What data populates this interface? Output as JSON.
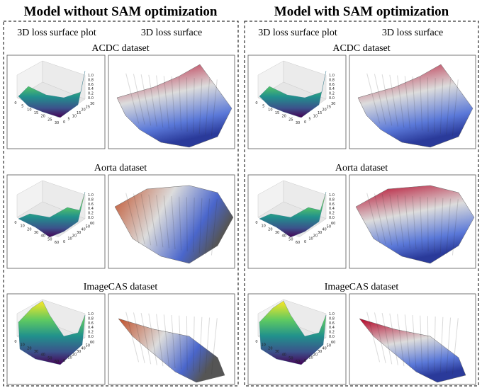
{
  "panels": [
    {
      "title": "Model without SAM optimization",
      "column_headers": [
        "3D loss surface plot",
        "3D loss surface"
      ],
      "datasets": [
        {
          "label": "ACDC dataset",
          "x_ticks": [
            "0",
            "5",
            "10",
            "15",
            "20",
            "25",
            "30"
          ],
          "y_ticks": [
            "0",
            "5",
            "10",
            "15",
            "20",
            "25",
            "30"
          ],
          "z_ticks": [
            "0.0",
            "0.2",
            "0.4",
            "0.6",
            "0.8",
            "1.0"
          ]
        },
        {
          "label": "Aorta dataset",
          "x_ticks": [
            "0",
            "10",
            "20",
            "30",
            "40",
            "50",
            "60"
          ],
          "y_ticks": [
            "0",
            "10",
            "20",
            "30",
            "40",
            "50",
            "60"
          ],
          "z_ticks": [
            "0.0",
            "0.2",
            "0.4",
            "0.6",
            "0.8",
            "1.0"
          ]
        },
        {
          "label": "ImageCAS dataset",
          "x_ticks": [
            "0",
            "10",
            "20",
            "30",
            "40",
            "50",
            "60"
          ],
          "y_ticks": [
            "0",
            "10",
            "20",
            "30",
            "40",
            "50",
            "60"
          ],
          "z_ticks": [
            "0.0",
            "0.2",
            "0.4",
            "0.6",
            "0.8",
            "1.0"
          ]
        }
      ]
    },
    {
      "title": "Model with SAM optimization",
      "column_headers": [
        "3D loss surface plot",
        "3D loss surface"
      ],
      "datasets": [
        {
          "label": "ACDC dataset",
          "x_ticks": [
            "0",
            "5",
            "10",
            "15",
            "20",
            "25",
            "30"
          ],
          "y_ticks": [
            "0",
            "5",
            "10",
            "15",
            "20",
            "25",
            "30"
          ],
          "z_ticks": [
            "0.0",
            "0.2",
            "0.4",
            "0.6",
            "0.8",
            "1.0"
          ]
        },
        {
          "label": "Aorta dataset",
          "x_ticks": [
            "0",
            "10",
            "20",
            "30",
            "40",
            "50",
            "60"
          ],
          "y_ticks": [
            "0",
            "10",
            "20",
            "30",
            "40",
            "50",
            "60"
          ],
          "z_ticks": [
            "0.0",
            "0.2",
            "0.4",
            "0.6",
            "0.8",
            "1.0"
          ]
        },
        {
          "label": "ImageCAS dataset",
          "x_ticks": [
            "0",
            "10",
            "20",
            "30",
            "40",
            "50",
            "60"
          ],
          "y_ticks": [
            "0",
            "10",
            "20",
            "30",
            "40",
            "50",
            "60"
          ],
          "z_ticks": [
            "0.0",
            "0.2",
            "0.4",
            "0.6",
            "0.8",
            "1.0"
          ]
        }
      ]
    }
  ]
}
